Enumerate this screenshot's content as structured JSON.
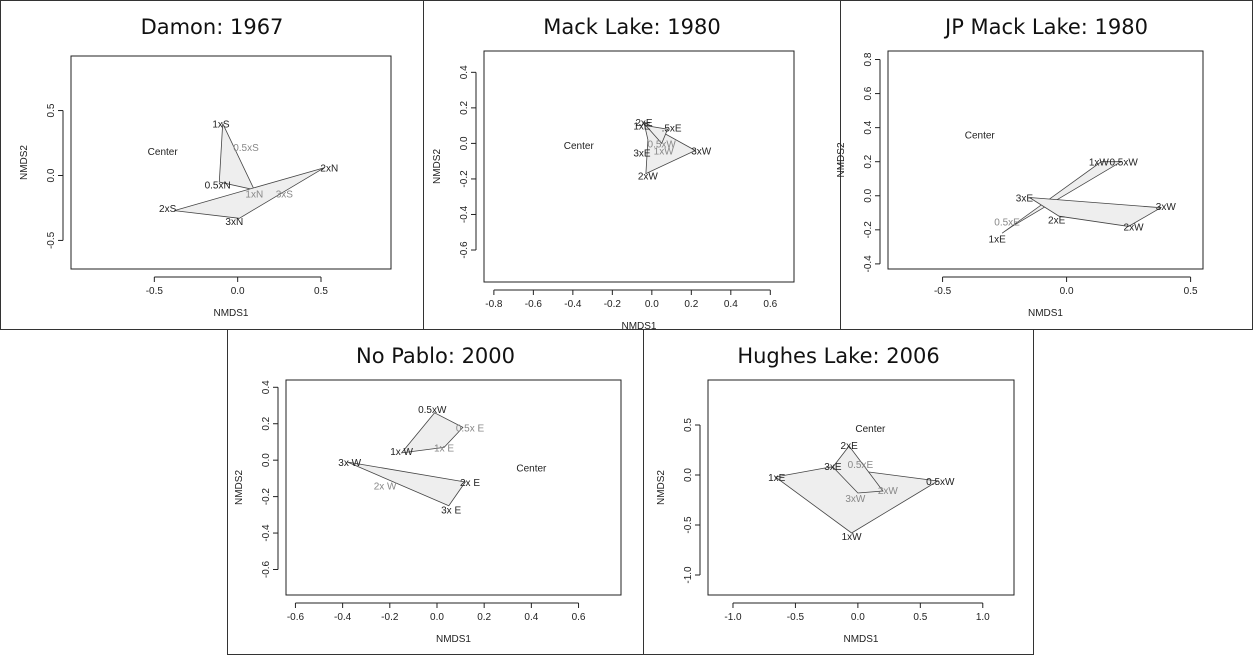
{
  "chart_data": [
    {
      "type": "scatter",
      "title": "Damon: 1967",
      "xlabel": "NMDS1",
      "ylabel": "NMDS2",
      "xticks": [
        "-0.5",
        "0.0",
        "0.5"
      ],
      "yticks": [
        "-0.5",
        "0.0",
        "0.5"
      ],
      "xlim": [
        -1.0,
        0.92
      ],
      "ylim": [
        -0.72,
        0.92
      ],
      "points": [
        {
          "label": "1xS",
          "x": -0.1,
          "y": 0.4,
          "color": "#222222"
        },
        {
          "label": "Center",
          "x": -0.45,
          "y": 0.19,
          "color": "#222222"
        },
        {
          "label": "0.5xS",
          "x": 0.05,
          "y": 0.22,
          "color": "#888888"
        },
        {
          "label": "2xN",
          "x": 0.55,
          "y": 0.06,
          "color": "#222222"
        },
        {
          "label": "0.5xN",
          "x": -0.12,
          "y": -0.07,
          "color": "#222222"
        },
        {
          "label": "1xN",
          "x": 0.1,
          "y": -0.14,
          "color": "#888888"
        },
        {
          "label": "3xS",
          "x": 0.28,
          "y": -0.14,
          "color": "#888888"
        },
        {
          "label": "2xS",
          "x": -0.42,
          "y": -0.25,
          "color": "#222222"
        },
        {
          "label": "3xN",
          "x": -0.02,
          "y": -0.35,
          "color": "#222222"
        }
      ],
      "polygons": [
        [
          [
            -0.09,
            0.4
          ],
          [
            0.1,
            -0.11
          ],
          [
            -0.11,
            -0.05
          ]
        ],
        [
          [
            -0.38,
            -0.27
          ],
          [
            0.52,
            0.06
          ],
          [
            0.01,
            -0.33
          ]
        ]
      ]
    },
    {
      "type": "scatter",
      "title": "Mack Lake: 1980",
      "xlabel": "NMDS1",
      "ylabel": "NMDS2",
      "xticks": [
        "-0.8",
        "-0.6",
        "-0.4",
        "-0.2",
        "0.0",
        "0.2",
        "0.4",
        "0.6"
      ],
      "yticks": [
        "-0.6",
        "-0.4",
        "-0.2",
        "0.0",
        "0.2",
        "0.4"
      ],
      "xlim": [
        -0.85,
        0.72
      ],
      "ylim": [
        -0.78,
        0.52
      ],
      "points": [
        {
          "label": "2xE",
          "x": -0.04,
          "y": 0.12,
          "color": "#222222"
        },
        {
          "label": "1xE",
          "x": -0.05,
          "y": 0.1,
          "color": "#222222"
        },
        {
          "label": ".5xE",
          "x": 0.1,
          "y": 0.09,
          "color": "#222222"
        },
        {
          "label": "Center",
          "x": -0.37,
          "y": -0.01,
          "color": "#222222"
        },
        {
          "label": "0.5xW",
          "x": 0.05,
          "y": 0.0,
          "color": "#888888"
        },
        {
          "label": "1xW",
          "x": 0.06,
          "y": -0.04,
          "color": "#888888"
        },
        {
          "label": "3xE",
          "x": -0.05,
          "y": -0.05,
          "color": "#222222"
        },
        {
          "label": "3xW",
          "x": 0.25,
          "y": -0.04,
          "color": "#222222"
        },
        {
          "label": "2xW",
          "x": -0.02,
          "y": -0.18,
          "color": "#222222"
        }
      ],
      "polygons": [
        [
          [
            -0.04,
            0.12
          ],
          [
            0.22,
            -0.04
          ],
          [
            -0.03,
            -0.17
          ],
          [
            -0.02,
            0.02
          ]
        ],
        [
          [
            -0.03,
            0.1
          ],
          [
            0.08,
            0.08
          ],
          [
            0.05,
            0.0
          ]
        ]
      ]
    },
    {
      "type": "scatter",
      "title": "JP Mack Lake: 1980",
      "xlabel": "NMDS1",
      "ylabel": "NMDS2",
      "xticks": [
        "-0.5",
        "0.0",
        "0.5"
      ],
      "yticks": [
        "-0.4",
        "-0.2",
        "0.0",
        "0.2",
        "0.4",
        "0.6",
        "0.8"
      ],
      "xlim": [
        -0.72,
        0.55
      ],
      "ylim": [
        -0.43,
        0.85
      ],
      "points": [
        {
          "label": "Center",
          "x": -0.35,
          "y": 0.36,
          "color": "#222222"
        },
        {
          "label": "1xW",
          "x": 0.13,
          "y": 0.2,
          "color": "#222222"
        },
        {
          "label": "0.5xW",
          "x": 0.23,
          "y": 0.2,
          "color": "#222222"
        },
        {
          "label": "3xE",
          "x": -0.17,
          "y": -0.01,
          "color": "#222222"
        },
        {
          "label": "3xW",
          "x": 0.4,
          "y": -0.06,
          "color": "#222222"
        },
        {
          "label": "0.5xE",
          "x": -0.24,
          "y": -0.15,
          "color": "#888888"
        },
        {
          "label": "2xE",
          "x": -0.04,
          "y": -0.14,
          "color": "#222222"
        },
        {
          "label": "2xW",
          "x": 0.27,
          "y": -0.18,
          "color": "#222222"
        },
        {
          "label": "1xE",
          "x": -0.28,
          "y": -0.25,
          "color": "#222222"
        }
      ],
      "polygons": [
        [
          [
            0.14,
            0.2
          ],
          [
            0.22,
            0.2
          ],
          [
            -0.22,
            -0.18
          ],
          [
            -0.26,
            -0.22
          ]
        ],
        [
          [
            -0.15,
            -0.01
          ],
          [
            0.38,
            -0.07
          ],
          [
            0.25,
            -0.18
          ],
          [
            -0.03,
            -0.12
          ]
        ]
      ]
    },
    {
      "type": "scatter",
      "title": "No Pablo: 2000",
      "xlabel": "NMDS1",
      "ylabel": "NMDS2",
      "xticks": [
        "-0.6",
        "-0.4",
        "-0.2",
        "0.0",
        "0.2",
        "0.4",
        "0.6"
      ],
      "yticks": [
        "-0.6",
        "-0.4",
        "-0.2",
        "0.0",
        "0.2",
        "0.4"
      ],
      "xlim": [
        -0.64,
        0.78
      ],
      "ylim": [
        -0.74,
        0.44
      ],
      "points": [
        {
          "label": "0.5xW",
          "x": -0.02,
          "y": 0.28,
          "color": "#222222"
        },
        {
          "label": "0.5x E",
          "x": 0.14,
          "y": 0.18,
          "color": "#888888"
        },
        {
          "label": "1x W",
          "x": -0.15,
          "y": 0.05,
          "color": "#222222"
        },
        {
          "label": "1x E",
          "x": 0.03,
          "y": 0.07,
          "color": "#888888"
        },
        {
          "label": "3x W",
          "x": -0.37,
          "y": -0.01,
          "color": "#222222"
        },
        {
          "label": "Center",
          "x": 0.4,
          "y": -0.04,
          "color": "#222222"
        },
        {
          "label": "2x E",
          "x": 0.14,
          "y": -0.12,
          "color": "#222222"
        },
        {
          "label": "2x W",
          "x": -0.22,
          "y": -0.14,
          "color": "#888888"
        },
        {
          "label": "3x E",
          "x": 0.06,
          "y": -0.27,
          "color": "#222222"
        }
      ],
      "polygons": [
        [
          [
            -0.01,
            0.26
          ],
          [
            0.11,
            0.18
          ],
          [
            0.03,
            0.07
          ],
          [
            -0.15,
            0.04
          ]
        ],
        [
          [
            -0.38,
            -0.01
          ],
          [
            0.12,
            -0.12
          ],
          [
            0.05,
            -0.25
          ]
        ]
      ]
    },
    {
      "type": "scatter",
      "title": "Hughes Lake: 2006",
      "xlabel": "NMDS1",
      "ylabel": "NMDS2",
      "xticks": [
        "-1.0",
        "-0.5",
        "0.0",
        "0.5",
        "1.0"
      ],
      "yticks": [
        "-1.0",
        "-0.5",
        "0.0",
        "0.5"
      ],
      "xlim": [
        -1.2,
        1.25
      ],
      "ylim": [
        -1.2,
        0.95
      ],
      "points": [
        {
          "label": "Center",
          "x": 0.1,
          "y": 0.47,
          "color": "#222222"
        },
        {
          "label": "2xE",
          "x": -0.07,
          "y": 0.3,
          "color": "#222222"
        },
        {
          "label": "3xE",
          "x": -0.2,
          "y": 0.09,
          "color": "#222222"
        },
        {
          "label": "0.5xE",
          "x": 0.02,
          "y": 0.11,
          "color": "#888888"
        },
        {
          "label": "1xE",
          "x": -0.65,
          "y": -0.02,
          "color": "#222222"
        },
        {
          "label": "2xW",
          "x": 0.24,
          "y": -0.15,
          "color": "#888888"
        },
        {
          "label": "0.5xW",
          "x": 0.66,
          "y": -0.06,
          "color": "#222222"
        },
        {
          "label": "3xW",
          "x": -0.02,
          "y": -0.23,
          "color": "#888888"
        },
        {
          "label": "1xW",
          "x": -0.05,
          "y": -0.61,
          "color": "#222222"
        }
      ],
      "polygons": [
        [
          [
            -0.66,
            -0.02
          ],
          [
            -0.22,
            0.08
          ],
          [
            0.64,
            -0.06
          ],
          [
            -0.05,
            -0.58
          ]
        ],
        [
          [
            -0.07,
            0.29
          ],
          [
            -0.2,
            0.08
          ],
          [
            0.0,
            -0.18
          ],
          [
            0.2,
            -0.16
          ]
        ]
      ]
    }
  ]
}
